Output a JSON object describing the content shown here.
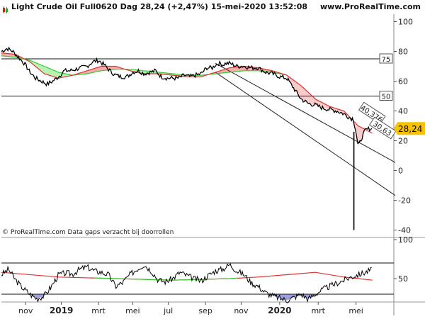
{
  "header": {
    "title": "Light Crude Oil Full0620 Dag 28,24 (+2,47%) 15-mei-2020 13:52:08",
    "site": "www.ProRealTime.com"
  },
  "footer": {
    "copyright": "© ProRealTime.com Data gaps verzacht bij doorrollen"
  },
  "colors": {
    "price": "#000000",
    "ma_fast": "#e03030",
    "ma_slow": "#33cc33",
    "fill_up": "#f4a0a0",
    "fill_down": "#aef0aa",
    "osc": "#000000",
    "osc_ma": "#e03030",
    "osc_fill_low": "#9999dd",
    "last_price_bg": "#f6c300",
    "channel": "#222222"
  },
  "chart_data": [
    {
      "type": "line",
      "panel": "price",
      "ylim": [
        -45,
        105
      ],
      "y_ticks": [
        100,
        80,
        60,
        40,
        20,
        0,
        -20,
        -40
      ],
      "x_ticks": [
        "nov",
        "2019",
        "mrt",
        "mei",
        "jul",
        "sep",
        "nov",
        "2020",
        "mrt",
        "mei"
      ],
      "last_price": "28,24",
      "horizontal_levels": [
        {
          "value": 75,
          "label": "75"
        },
        {
          "value": 50,
          "label": "50"
        }
      ],
      "channel_labels": [
        "40,376",
        "30,63"
      ],
      "series": [
        {
          "role": "price",
          "x": [
            0,
            8,
            16,
            24,
            32,
            40,
            48,
            56,
            64,
            72,
            80,
            88,
            96,
            104,
            112,
            120,
            128,
            136,
            144,
            152,
            160,
            168,
            176,
            184,
            192,
            200,
            208,
            216,
            224,
            232,
            240,
            248,
            256,
            264,
            272,
            280,
            288,
            296,
            300,
            305,
            310,
            315,
            320,
            330,
            340,
            350,
            360,
            370,
            380,
            390,
            400,
            410,
            420,
            430,
            440,
            450,
            460,
            470,
            480,
            490,
            493,
            497,
            500,
            505,
            510,
            515,
            520
          ],
          "values": [
            80,
            82,
            80,
            76,
            72,
            66,
            62,
            60,
            58,
            60,
            63,
            67,
            67,
            68,
            69,
            70,
            73,
            74,
            71,
            67,
            64,
            63,
            63,
            66,
            67,
            65,
            66,
            67,
            63,
            62,
            62,
            62,
            64,
            63,
            64,
            65,
            69,
            69,
            71,
            72,
            71,
            72,
            72,
            70,
            70,
            69,
            69,
            66,
            65,
            63,
            62,
            55,
            48,
            45,
            44,
            42,
            41,
            40,
            38,
            35,
            35,
            26,
            16,
            22,
            27,
            28,
            28
          ]
        },
        {
          "role": "ma_fast",
          "x": [
            0,
            20,
            40,
            60,
            80,
            100,
            120,
            140,
            160,
            180,
            200,
            220,
            240,
            260,
            280,
            300,
            320,
            340,
            360,
            380,
            400,
            420,
            440,
            460,
            480,
            500,
            520
          ],
          "values": [
            79,
            78,
            73,
            65,
            62,
            64,
            67,
            70,
            70,
            67,
            65,
            65,
            64,
            63,
            63,
            66,
            69,
            70,
            69,
            67,
            64,
            57,
            48,
            43,
            40,
            30,
            25
          ]
        },
        {
          "role": "ma_slow",
          "x": [
            0,
            20,
            40,
            60,
            80,
            100,
            120,
            140,
            160,
            180,
            200,
            220,
            240,
            260,
            280,
            300,
            320,
            340,
            360,
            380,
            400
          ],
          "values": [
            77,
            76,
            74,
            70,
            66,
            64,
            65,
            67,
            68,
            68,
            67,
            66,
            65,
            64,
            64,
            65,
            66,
            67,
            67,
            66,
            64
          ]
        },
        {
          "role": "channel_upper",
          "x": [
            300,
            440
          ],
          "values": [
            72,
            35
          ]
        },
        {
          "role": "channel_lower",
          "x": [
            300,
            440
          ],
          "values": [
            66,
            20
          ]
        }
      ]
    },
    {
      "type": "line",
      "panel": "oscillator",
      "ylim": [
        20,
        100
      ],
      "y_ticks": [
        100,
        50
      ],
      "levels": [
        70,
        30
      ],
      "series": [
        {
          "role": "oscillator",
          "x": [
            0,
            10,
            20,
            30,
            40,
            50,
            60,
            70,
            80,
            90,
            100,
            110,
            120,
            130,
            140,
            150,
            160,
            170,
            180,
            190,
            200,
            210,
            220,
            230,
            240,
            250,
            260,
            270,
            280,
            290,
            300,
            310,
            320,
            330,
            340,
            350,
            360,
            370,
            380,
            390,
            400,
            410,
            420,
            430,
            440,
            450,
            460,
            470,
            480,
            490,
            500,
            510,
            520
          ],
          "values": [
            55,
            62,
            48,
            38,
            30,
            24,
            28,
            40,
            55,
            57,
            56,
            62,
            65,
            60,
            58,
            55,
            40,
            45,
            55,
            62,
            68,
            60,
            48,
            46,
            50,
            58,
            54,
            50,
            47,
            54,
            60,
            62,
            68,
            60,
            55,
            45,
            40,
            32,
            28,
            25,
            22,
            26,
            30,
            24,
            30,
            36,
            40,
            44,
            48,
            52,
            55,
            58,
            62
          ]
        },
        {
          "role": "oscillator_ma",
          "x": [
            0,
            80,
            160,
            240,
            320,
            360,
            400,
            440,
            480,
            520
          ],
          "values": [
            58,
            52,
            50,
            48,
            50,
            52,
            55,
            58,
            52,
            48
          ]
        }
      ]
    }
  ]
}
